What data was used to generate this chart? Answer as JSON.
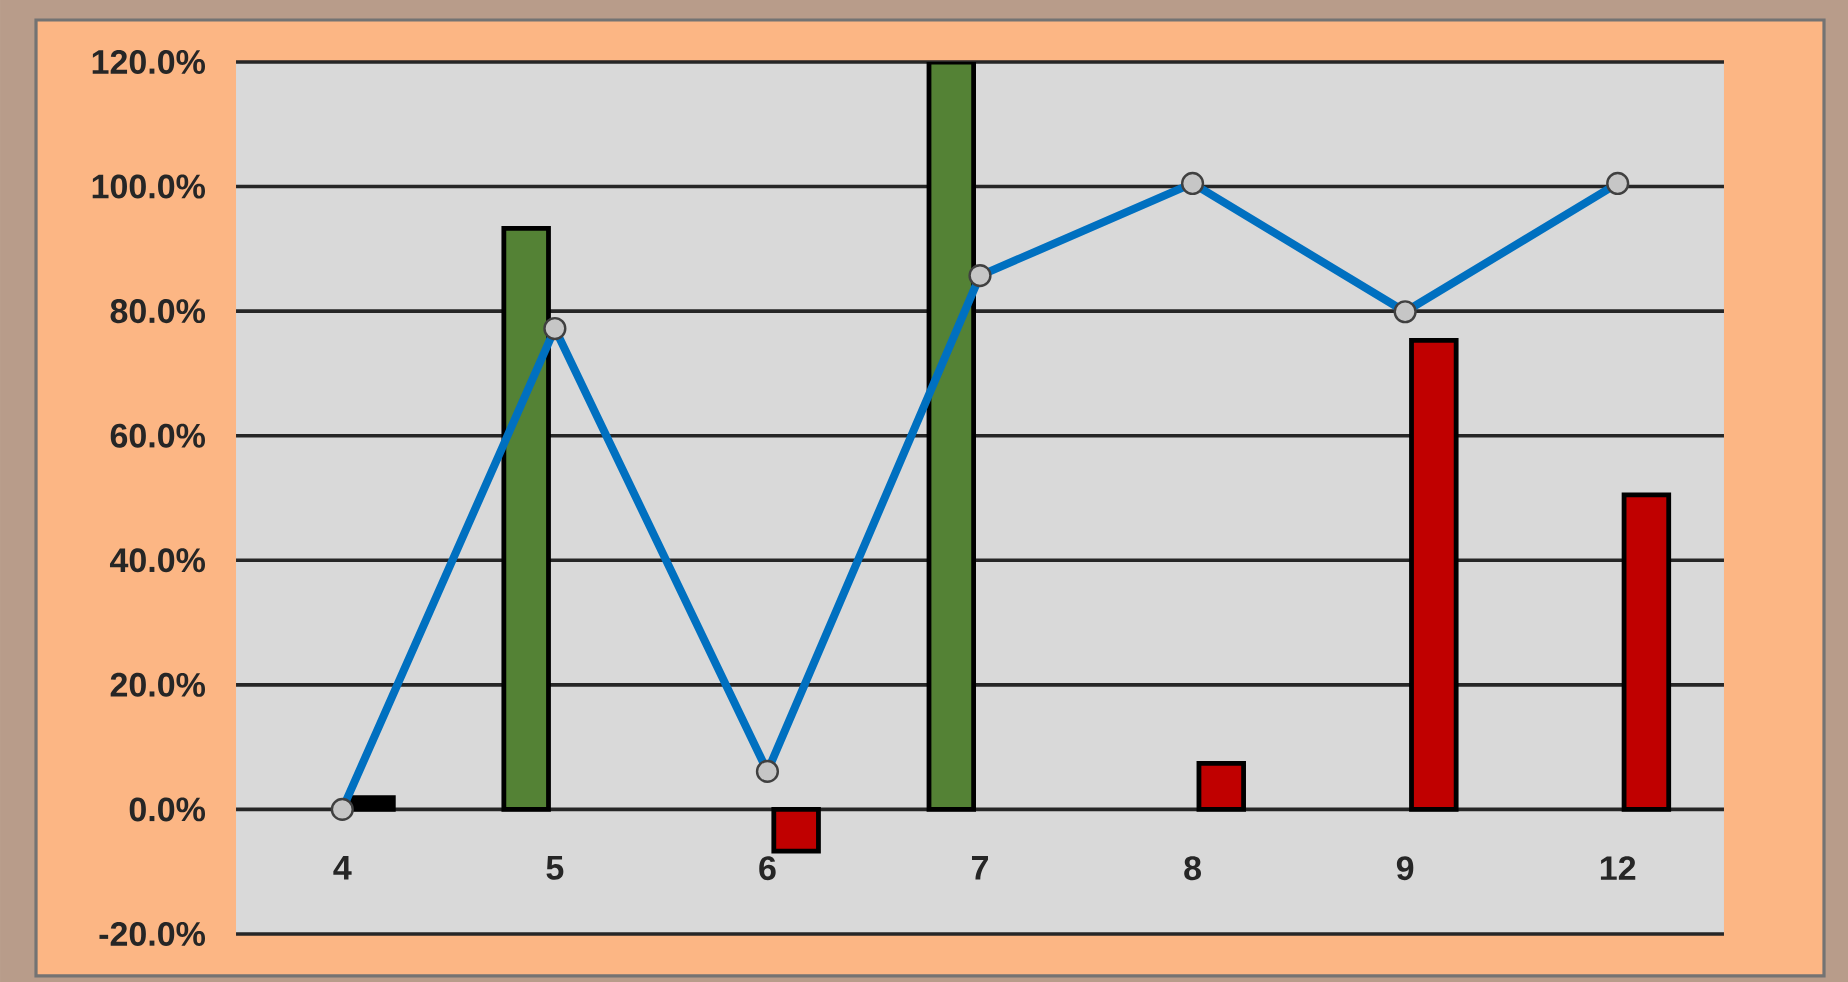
{
  "chart_data": {
    "type": "bar",
    "categories": [
      "4",
      "5",
      "6",
      "7",
      "8",
      "9",
      "12"
    ],
    "series": [
      {
        "color": "#548235",
        "values": [
          null,
          93.3,
          null,
          120,
          null,
          null,
          null
        ]
      },
      {
        "colors": [
          "#000000",
          "#c00000",
          "#c00000",
          "#c00000",
          "#c00000",
          "#c00000",
          "#c00000"
        ],
        "values": [
          1.9,
          null,
          -6.7,
          null,
          7.4,
          75.3,
          50.5
        ]
      },
      {
        "type": "line",
        "color": "#0070c0",
        "values": [
          0,
          77.2,
          6.1,
          85.7,
          100.5,
          79.9,
          100.5
        ]
      }
    ],
    "ylim": [
      -20,
      120
    ],
    "yticks": [
      {
        "value": -20,
        "label": "-20.0%"
      },
      {
        "value": 0,
        "label": "0.0%"
      },
      {
        "value": 20,
        "label": "20.0%"
      },
      {
        "value": 40,
        "label": "40.0%"
      },
      {
        "value": 60,
        "label": "60.0%"
      },
      {
        "value": 80,
        "label": "80.0%"
      },
      {
        "value": 100,
        "label": "100.0%"
      },
      {
        "value": 120,
        "label": "120.0%"
      }
    ],
    "grid": "y",
    "marker": "circle"
  }
}
